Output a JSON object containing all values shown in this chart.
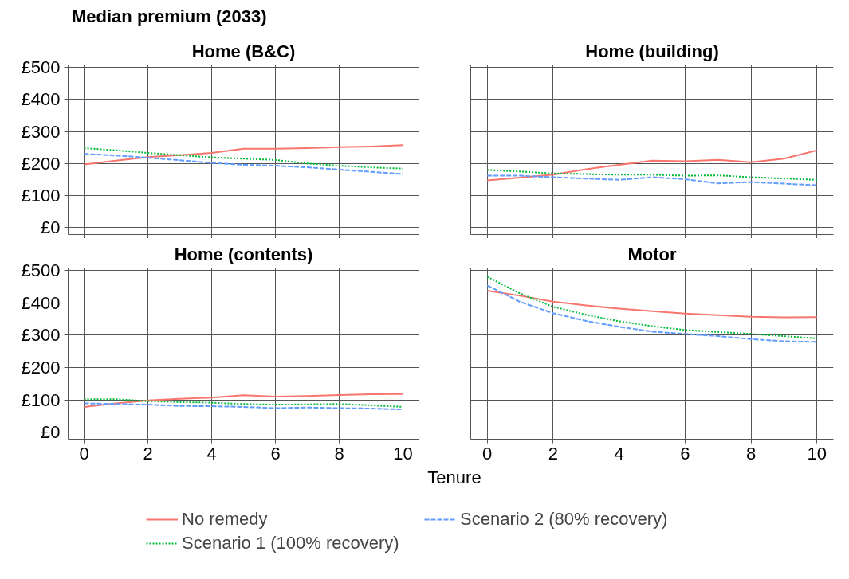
{
  "chart_data": [
    {
      "type": "line",
      "title": "Home (B&C)",
      "legend": "bottom",
      "annotations": [
        "Median premium (2033)"
      ],
      "x": [
        0,
        1,
        2,
        3,
        4,
        5,
        6,
        7,
        8,
        9,
        10
      ],
      "xlim": [
        -0.5,
        10.5
      ],
      "ylim": [
        -22,
        508
      ],
      "xticks": [
        0,
        2,
        4,
        6,
        8,
        10
      ],
      "yticks": [
        {
          "value": 0,
          "label": "£0"
        },
        {
          "value": 100,
          "label": "£100"
        },
        {
          "value": 200,
          "label": "£200"
        },
        {
          "value": 300,
          "label": "£300"
        },
        {
          "value": 400,
          "label": "£400"
        },
        {
          "value": 500,
          "label": "£500"
        }
      ],
      "grid": true,
      "tick_labels": "y",
      "series": [
        {
          "name": "No remedy",
          "color": "#f8766d",
          "line_style": "solid",
          "values": [
            197,
            209,
            220,
            226,
            233,
            246,
            246,
            248,
            251,
            253,
            257
          ]
        },
        {
          "name": "Scenario 1 (100% recovery)",
          "color": "#00ba38",
          "line_style": "dotted",
          "values": [
            248,
            241,
            233,
            226,
            219,
            215,
            211,
            200,
            193,
            188,
            184
          ]
        },
        {
          "name": "Scenario 2 (80% recovery)",
          "color": "#619cff",
          "line_style": "dashed",
          "values": [
            230,
            225,
            218,
            210,
            202,
            196,
            193,
            188,
            181,
            174,
            167
          ]
        }
      ]
    },
    {
      "type": "line",
      "title": "Home (building)",
      "x": [
        0,
        1,
        2,
        3,
        4,
        5,
        6,
        7,
        8,
        9,
        10
      ],
      "xlim": [
        -0.5,
        10.5
      ],
      "ylim": [
        -22,
        508
      ],
      "xticks": [
        0,
        2,
        4,
        6,
        8,
        10
      ],
      "yticks": [
        0,
        100,
        200,
        300,
        400,
        500
      ],
      "grid": true,
      "tick_labels": false,
      "series": [
        {
          "color": "#f8766d",
          "line_style": "solid",
          "values": [
            147,
            156,
            165,
            182,
            196,
            209,
            207,
            211,
            204,
            215,
            241
          ]
        },
        {
          "color": "#00ba38",
          "line_style": "dotted",
          "values": [
            180,
            175,
            169,
            167,
            165,
            165,
            162,
            163,
            157,
            153,
            149
          ]
        },
        {
          "color": "#619cff",
          "line_style": "dashed",
          "values": [
            162,
            162,
            157,
            153,
            149,
            157,
            151,
            138,
            142,
            137,
            132
          ]
        }
      ]
    },
    {
      "type": "line",
      "title": "Home (contents)",
      "x": [
        0,
        1,
        2,
        3,
        4,
        5,
        6,
        7,
        8,
        9,
        10
      ],
      "xlim": [
        -0.5,
        10.5
      ],
      "ylim": [
        -22,
        508
      ],
      "xticks": [
        0,
        2,
        4,
        6,
        8,
        10
      ],
      "yticks": [
        {
          "value": 0,
          "label": "£0"
        },
        {
          "value": 100,
          "label": "£100"
        },
        {
          "value": 200,
          "label": "£200"
        },
        {
          "value": 300,
          "label": "£300"
        },
        {
          "value": 400,
          "label": "£400"
        },
        {
          "value": 500,
          "label": "£500"
        }
      ],
      "grid": true,
      "series": [
        {
          "color": "#f8766d",
          "line_style": "solid",
          "values": [
            78,
            89,
            98,
            103,
            107,
            114,
            110,
            112,
            115,
            117,
            118
          ]
        },
        {
          "color": "#00ba38",
          "line_style": "dotted",
          "values": [
            102,
            102,
            96,
            93,
            91,
            87,
            85,
            86,
            87,
            83,
            78
          ]
        },
        {
          "color": "#619cff",
          "line_style": "dashed",
          "values": [
            89,
            87,
            85,
            81,
            80,
            78,
            74,
            76,
            74,
            73,
            70
          ]
        }
      ]
    },
    {
      "type": "line",
      "title": "Motor",
      "xlabel": "Tenure",
      "x": [
        0,
        1,
        2,
        3,
        4,
        5,
        6,
        7,
        8,
        9,
        10
      ],
      "xlim": [
        -0.5,
        10.5
      ],
      "ylim": [
        -22,
        508
      ],
      "xticks": [
        0,
        2,
        4,
        6,
        8,
        10
      ],
      "yticks": [
        0,
        100,
        200,
        300,
        400,
        500
      ],
      "grid": true,
      "tick_labels": "x",
      "series": [
        {
          "color": "#f8766d",
          "line_style": "solid",
          "values": [
            438,
            422,
            404,
            392,
            382,
            374,
            367,
            362,
            357,
            355,
            356
          ]
        },
        {
          "color": "#00ba38",
          "line_style": "dotted",
          "values": [
            481,
            429,
            388,
            363,
            343,
            328,
            316,
            310,
            304,
            297,
            290
          ]
        },
        {
          "color": "#619cff",
          "line_style": "dashed",
          "values": [
            454,
            403,
            368,
            344,
            326,
            311,
            304,
            297,
            288,
            281,
            279
          ]
        }
      ]
    }
  ]
}
